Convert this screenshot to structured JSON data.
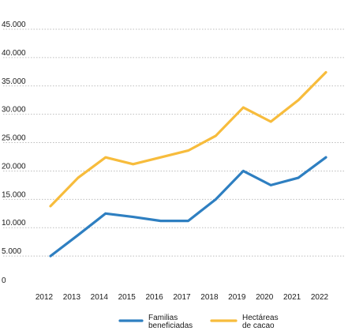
{
  "chart_data": {
    "type": "line",
    "x": [
      "2012",
      "2013",
      "2014",
      "2015",
      "2016",
      "2017",
      "2018",
      "2019",
      "2020",
      "2021",
      "2022"
    ],
    "y_ticks": [
      "0",
      "5.000",
      "10.000",
      "15.000",
      "20.000",
      "25.000",
      "30.000",
      "35.000",
      "40.000",
      "45.000"
    ],
    "y_tick_values": [
      0,
      5000,
      10000,
      15000,
      20000,
      25000,
      30000,
      35000,
      40000,
      45000
    ],
    "ylim": [
      0,
      45000
    ],
    "grid": true,
    "legend_position": "bottom",
    "series": [
      {
        "name_lines": [
          "Familias",
          "beneficiadas"
        ],
        "color": "#2e7fc1",
        "values": [
          5000,
          8700,
          12500,
          11900,
          11200,
          11200,
          15000,
          20000,
          17500,
          18800,
          22400
        ]
      },
      {
        "name_lines": [
          "Hectáreas",
          "de cacao"
        ],
        "color": "#f7bc3c",
        "values": [
          13800,
          18800,
          22400,
          21200,
          22400,
          23600,
          26200,
          31200,
          28700,
          32500,
          37400
        ]
      }
    ]
  }
}
